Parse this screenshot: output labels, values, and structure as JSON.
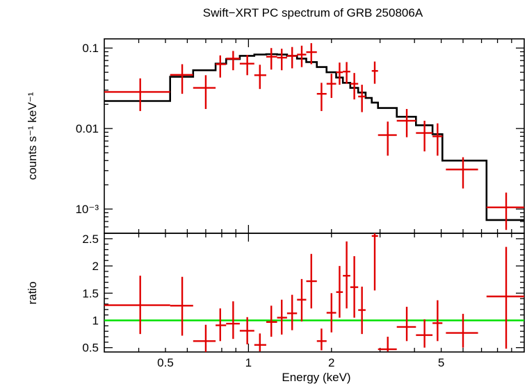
{
  "chart_data": [
    {
      "type": "scatter",
      "panel": "spectrum",
      "title": "Swift−XRT PC spectrum of GRB 250806A",
      "ylabel": "counts s⁻¹ keV⁻¹",
      "xscale": "log",
      "yscale": "log",
      "xlim": [
        0.3,
        10
      ],
      "ylim": [
        0.0005,
        0.13
      ],
      "ytick_values": [
        0.1,
        0.01,
        0.001
      ],
      "ytick_labels": [
        "0.1",
        "0.01",
        "10⁻³"
      ],
      "data_color": "#e00000",
      "model_color": "#000000",
      "series": [
        {
          "kind": "data",
          "points": [
            {
              "x": 0.405,
              "xlo": 0.3,
              "xhi": 0.52,
              "y": 0.0285,
              "ylo": 0.0165,
              "yhi": 0.042
            },
            {
              "x": 0.575,
              "xlo": 0.52,
              "xhi": 0.63,
              "y": 0.0465,
              "ylo": 0.027,
              "yhi": 0.063
            },
            {
              "x": 0.7,
              "xlo": 0.63,
              "xhi": 0.76,
              "y": 0.032,
              "ylo": 0.0175,
              "yhi": 0.046
            },
            {
              "x": 0.79,
              "xlo": 0.76,
              "xhi": 0.83,
              "y": 0.063,
              "ylo": 0.043,
              "yhi": 0.081
            },
            {
              "x": 0.88,
              "xlo": 0.83,
              "xhi": 0.93,
              "y": 0.074,
              "ylo": 0.053,
              "yhi": 0.092
            },
            {
              "x": 0.99,
              "xlo": 0.93,
              "xhi": 1.05,
              "y": 0.064,
              "ylo": 0.046,
              "yhi": 0.082
            },
            {
              "x": 1.1,
              "xlo": 1.05,
              "xhi": 1.16,
              "y": 0.046,
              "ylo": 0.031,
              "yhi": 0.062
            },
            {
              "x": 1.21,
              "xlo": 1.16,
              "xhi": 1.27,
              "y": 0.078,
              "ylo": 0.054,
              "yhi": 0.1
            },
            {
              "x": 1.32,
              "xlo": 1.27,
              "xhi": 1.38,
              "y": 0.076,
              "ylo": 0.053,
              "yhi": 0.098
            },
            {
              "x": 1.44,
              "xlo": 1.38,
              "xhi": 1.5,
              "y": 0.08,
              "ylo": 0.056,
              "yhi": 0.103
            },
            {
              "x": 1.56,
              "xlo": 1.5,
              "xhi": 1.62,
              "y": 0.083,
              "ylo": 0.058,
              "yhi": 0.107
            },
            {
              "x": 1.69,
              "xlo": 1.62,
              "xhi": 1.77,
              "y": 0.089,
              "ylo": 0.063,
              "yhi": 0.115
            },
            {
              "x": 1.84,
              "xlo": 1.77,
              "xhi": 1.92,
              "y": 0.027,
              "ylo": 0.0165,
              "yhi": 0.037
            },
            {
              "x": 2.0,
              "xlo": 1.92,
              "xhi": 2.08,
              "y": 0.036,
              "ylo": 0.024,
              "yhi": 0.048
            },
            {
              "x": 2.14,
              "xlo": 2.08,
              "xhi": 2.2,
              "y": 0.05,
              "ylo": 0.035,
              "yhi": 0.066
            },
            {
              "x": 2.27,
              "xlo": 2.2,
              "xhi": 2.34,
              "y": 0.051,
              "ylo": 0.036,
              "yhi": 0.067
            },
            {
              "x": 2.42,
              "xlo": 2.34,
              "xhi": 2.5,
              "y": 0.036,
              "ylo": 0.023,
              "yhi": 0.049
            },
            {
              "x": 2.58,
              "xlo": 2.5,
              "xhi": 2.66,
              "y": 0.025,
              "ylo": 0.016,
              "yhi": 0.035
            },
            {
              "x": 2.87,
              "xlo": 2.8,
              "xhi": 2.95,
              "y": 0.052,
              "ylo": 0.036,
              "yhi": 0.068
            },
            {
              "x": 3.2,
              "xlo": 2.95,
              "xhi": 3.45,
              "y": 0.0083,
              "ylo": 0.0046,
              "yhi": 0.0122
            },
            {
              "x": 3.75,
              "xlo": 3.45,
              "xhi": 4.05,
              "y": 0.0125,
              "ylo": 0.0078,
              "yhi": 0.0175
            },
            {
              "x": 4.35,
              "xlo": 4.05,
              "xhi": 4.65,
              "y": 0.0088,
              "ylo": 0.0052,
              "yhi": 0.0125
            },
            {
              "x": 4.85,
              "xlo": 4.65,
              "xhi": 5.05,
              "y": 0.008,
              "ylo": 0.0046,
              "yhi": 0.0116
            },
            {
              "x": 6.0,
              "xlo": 5.2,
              "xhi": 6.8,
              "y": 0.0031,
              "ylo": 0.0018,
              "yhi": 0.0044
            },
            {
              "x": 8.6,
              "xlo": 7.3,
              "xhi": 10.0,
              "y": 0.00105,
              "ylo": 0.00055,
              "yhi": 0.0016
            }
          ]
        },
        {
          "kind": "model",
          "step_edges": [
            0.3,
            0.52,
            0.63,
            0.76,
            0.83,
            0.93,
            1.05,
            1.16,
            1.27,
            1.38,
            1.5,
            1.62,
            1.77,
            1.92,
            2.08,
            2.2,
            2.34,
            2.5,
            2.66,
            2.8,
            2.95,
            3.45,
            4.05,
            4.65,
            5.05,
            6.8,
            7.3,
            10.0
          ],
          "step_values": [
            0.022,
            0.044,
            0.053,
            0.064,
            0.073,
            0.08,
            0.083,
            0.084,
            0.083,
            0.08,
            0.074,
            0.067,
            0.058,
            0.05,
            0.043,
            0.037,
            0.032,
            0.028,
            0.024,
            0.021,
            0.018,
            0.014,
            0.011,
            0.0085,
            0.004,
            0.004,
            0.00073
          ]
        }
      ]
    },
    {
      "type": "scatter",
      "panel": "ratio",
      "xlabel": "Energy (keV)",
      "ylabel": "ratio",
      "xscale": "log",
      "xlim": [
        0.3,
        10
      ],
      "ylim": [
        0.42,
        2.6
      ],
      "ytick_values": [
        0.5,
        1,
        1.5,
        2,
        2.5
      ],
      "ytick_labels": [
        "0.5",
        "1",
        "1.5",
        "2",
        "2.5"
      ],
      "xtick_values": [
        0.5,
        1,
        2,
        5
      ],
      "xtick_labels": [
        "0.5",
        "1",
        "2",
        "5"
      ],
      "reference_line": {
        "y": 1,
        "color": "#00e000"
      },
      "data_color": "#e00000",
      "points": [
        {
          "x": 0.405,
          "xlo": 0.3,
          "xhi": 0.52,
          "y": 1.28,
          "ylo": 0.75,
          "yhi": 1.82
        },
        {
          "x": 0.575,
          "xlo": 0.52,
          "xhi": 0.63,
          "y": 1.27,
          "ylo": 0.72,
          "yhi": 1.8
        },
        {
          "x": 0.7,
          "xlo": 0.63,
          "xhi": 0.76,
          "y": 0.62,
          "ylo": 0.42,
          "yhi": 0.92
        },
        {
          "x": 0.79,
          "xlo": 0.76,
          "xhi": 0.83,
          "y": 0.91,
          "ylo": 0.62,
          "yhi": 1.22
        },
        {
          "x": 0.88,
          "xlo": 0.83,
          "xhi": 0.93,
          "y": 0.94,
          "ylo": 0.66,
          "yhi": 1.35
        },
        {
          "x": 0.99,
          "xlo": 0.93,
          "xhi": 1.05,
          "y": 0.81,
          "ylo": 0.56,
          "yhi": 1.06
        },
        {
          "x": 1.1,
          "xlo": 1.05,
          "xhi": 1.16,
          "y": 0.55,
          "ylo": 0.43,
          "yhi": 0.76
        },
        {
          "x": 1.21,
          "xlo": 1.16,
          "xhi": 1.27,
          "y": 0.97,
          "ylo": 0.7,
          "yhi": 1.27
        },
        {
          "x": 1.32,
          "xlo": 1.27,
          "xhi": 1.38,
          "y": 1.05,
          "ylo": 0.74,
          "yhi": 1.38
        },
        {
          "x": 1.44,
          "xlo": 1.38,
          "xhi": 1.5,
          "y": 1.13,
          "ylo": 0.82,
          "yhi": 1.47
        },
        {
          "x": 1.56,
          "xlo": 1.5,
          "xhi": 1.62,
          "y": 1.38,
          "ylo": 0.98,
          "yhi": 1.76
        },
        {
          "x": 1.69,
          "xlo": 1.62,
          "xhi": 1.77,
          "y": 1.72,
          "ylo": 1.22,
          "yhi": 2.22
        },
        {
          "x": 1.84,
          "xlo": 1.77,
          "xhi": 1.92,
          "y": 0.62,
          "ylo": 0.45,
          "yhi": 0.85
        },
        {
          "x": 2.0,
          "xlo": 1.92,
          "xhi": 2.08,
          "y": 1.14,
          "ylo": 0.78,
          "yhi": 1.5
        },
        {
          "x": 2.14,
          "xlo": 2.08,
          "xhi": 2.2,
          "y": 1.52,
          "ylo": 1.05,
          "yhi": 2.0
        },
        {
          "x": 2.27,
          "xlo": 2.2,
          "xhi": 2.34,
          "y": 1.82,
          "ylo": 1.22,
          "yhi": 2.45
        },
        {
          "x": 2.42,
          "xlo": 2.34,
          "xhi": 2.5,
          "y": 1.61,
          "ylo": 1.05,
          "yhi": 2.18
        },
        {
          "x": 2.58,
          "xlo": 2.5,
          "xhi": 2.66,
          "y": 1.19,
          "ylo": 0.75,
          "yhi": 1.62
        },
        {
          "x": 2.87,
          "xlo": 2.8,
          "xhi": 2.95,
          "y": 2.55,
          "ylo": 1.55,
          "yhi": 2.6
        },
        {
          "x": 3.2,
          "xlo": 2.95,
          "xhi": 3.45,
          "y": 0.47,
          "ylo": 0.43,
          "yhi": 0.7
        },
        {
          "x": 3.75,
          "xlo": 3.45,
          "xhi": 4.05,
          "y": 0.88,
          "ylo": 0.62,
          "yhi": 1.25
        },
        {
          "x": 4.35,
          "xlo": 4.05,
          "xhi": 4.65,
          "y": 0.73,
          "ylo": 0.5,
          "yhi": 1.02
        },
        {
          "x": 4.85,
          "xlo": 4.65,
          "xhi": 5.05,
          "y": 0.95,
          "ylo": 0.62,
          "yhi": 1.37
        },
        {
          "x": 6.0,
          "xlo": 5.2,
          "xhi": 6.8,
          "y": 0.77,
          "ylo": 0.5,
          "yhi": 1.12
        },
        {
          "x": 8.6,
          "xlo": 7.3,
          "xhi": 10.0,
          "y": 1.44,
          "ylo": 0.48,
          "yhi": 2.35
        }
      ]
    }
  ]
}
